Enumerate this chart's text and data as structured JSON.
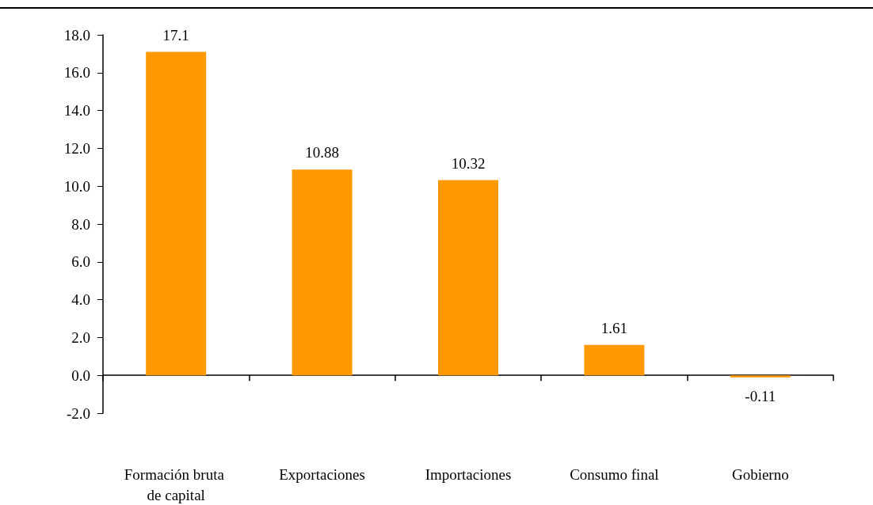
{
  "chart_data": {
    "type": "bar",
    "categories": [
      "Formación bruta de capital",
      "Exportaciones",
      "Importaciones",
      "Consumo final",
      "Gobierno"
    ],
    "values": [
      17.1,
      10.88,
      10.32,
      1.61,
      -0.11
    ],
    "color": "#ff9900",
    "data_labels": true,
    "ylim": [
      -2,
      18
    ],
    "yticks": [
      {
        "value": -2,
        "label": "-2.0"
      },
      {
        "value": 0,
        "label": "0.0"
      },
      {
        "value": 2,
        "label": "2.0"
      },
      {
        "value": 4,
        "label": "4.0"
      },
      {
        "value": 6,
        "label": "6.0"
      },
      {
        "value": 8,
        "label": "8.0"
      },
      {
        "value": 10,
        "label": "10.0"
      },
      {
        "value": 12,
        "label": "12.0"
      },
      {
        "value": 14,
        "label": "14.0"
      },
      {
        "value": 16,
        "label": "16.0"
      },
      {
        "value": 18,
        "label": "18.0"
      }
    ],
    "tick_labels": true
  }
}
